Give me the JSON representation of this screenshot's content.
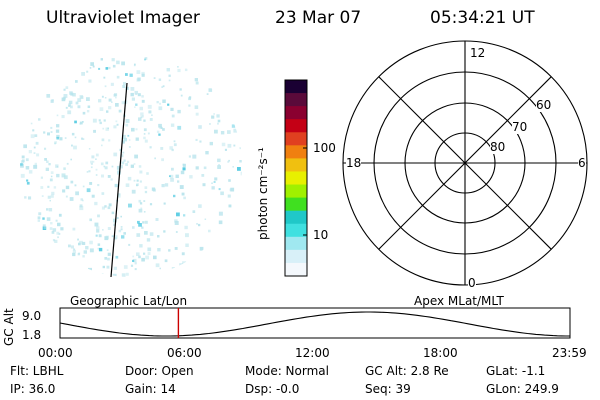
{
  "header": {
    "instrument": "Ultraviolet Imager",
    "date": "23 Mar 07",
    "time": "05:34:21 UT"
  },
  "colorbar": {
    "unit_label": "photon cm⁻²s⁻¹",
    "ticks": [
      "100",
      "10"
    ],
    "colors": [
      "#1a0033",
      "#5a0a3a",
      "#8a0030",
      "#c40015",
      "#e04020",
      "#f08010",
      "#f0c010",
      "#e8f000",
      "#a0f000",
      "#40e020",
      "#20c8c8",
      "#40e0e0",
      "#a0e8f0",
      "#d8f0f8",
      "#f4f8fc"
    ]
  },
  "polar_plot": {
    "mlt_labels": {
      "top": "12",
      "bottom": "0",
      "left": "18",
      "right": "6"
    },
    "lat_labels": [
      "60",
      "70",
      "80"
    ]
  },
  "timeline": {
    "left_title": "Geographic Lat/Lon",
    "right_title": "Apex MLat/MLT",
    "y_axis_label": "GC Alt",
    "y_ticks": [
      "9.0",
      "1.8"
    ],
    "x_ticks": [
      "00:00",
      "06:00",
      "12:00",
      "18:00",
      "23:59"
    ],
    "current_time_marker_hours": 5.57,
    "curve_color": "#000000",
    "marker_color": "#cc0000"
  },
  "status": {
    "filter": "Flt: LBHL",
    "door": "Door: Open",
    "mode": "Mode: Normal",
    "gc_alt": "GC Alt: 2.8 Re",
    "glat": "GLat:  -1.1",
    "ip": "IP: 36.0",
    "gain": "Gain: 14",
    "dsp": "Dsp:   -0.0",
    "seq": "Seq: 39",
    "glon": "GLon: 249.9"
  },
  "colors": {
    "aurora_speckle": "#b8e4ec",
    "aurora_bright": "#4cc8e0"
  }
}
